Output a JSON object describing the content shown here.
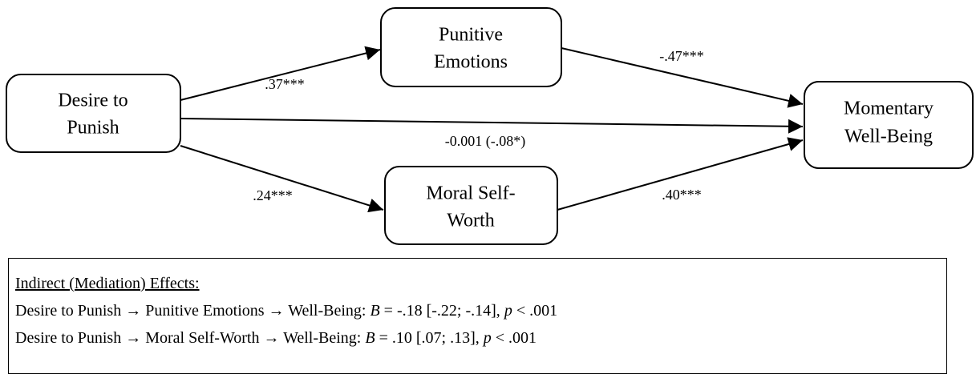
{
  "nodes": [
    {
      "lines": [
        "Desire to",
        "Punish"
      ]
    },
    {
      "lines": [
        "Punitive",
        "Emotions"
      ]
    },
    {
      "lines": [
        "Moral Self-",
        "Worth"
      ]
    },
    {
      "lines": [
        "Momentary",
        "Well-Being"
      ]
    }
  ],
  "edges": [
    {
      "label": ".37***"
    },
    {
      "label": "-.47***"
    },
    {
      "label": "-0.001 (-.08*)"
    },
    {
      "label": ".24***"
    },
    {
      "label": ".40***"
    }
  ],
  "effects": {
    "heading": "Indirect (Mediation) Effects:",
    "lines": [
      {
        "lead": "Desire to Punish → Punitive Emotions → Well-Being: ",
        "b": "B",
        "b_text": " = -.18 [-.22; -.14], ",
        "p": "p",
        "p_text": " < .001"
      },
      {
        "lead": "Desire to Punish → Moral Self-Worth → Well-Being: ",
        "b": "B",
        "b_text": " = .10 [.07; .13], ",
        "p": "p",
        "p_text": " < .001"
      }
    ]
  }
}
